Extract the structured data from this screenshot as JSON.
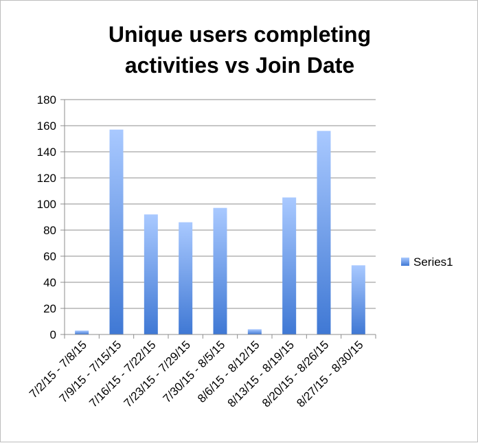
{
  "chart_data": {
    "type": "bar",
    "title_lines": [
      "Unique users completing",
      "activities vs Join Date"
    ],
    "categories": [
      "7/2/15 - 7/8/15",
      "7/9/15 - 7/15/15",
      "7/16/15 - 7/22/15",
      "7/23/15 - 7/29/15",
      "7/30/15 - 8/5/15",
      "8/6/15 - 8/12/15",
      "8/13/15 - 8/19/15",
      "8/20/15 - 8/26/15",
      "8/27/15 - 8/30/15"
    ],
    "series": [
      {
        "name": "Series1",
        "values": [
          3,
          157,
          92,
          86,
          97,
          4,
          105,
          156,
          53
        ]
      }
    ],
    "ylim": [
      0,
      180
    ],
    "yticks": [
      0,
      20,
      40,
      60,
      80,
      100,
      120,
      140,
      160,
      180
    ],
    "grid": true,
    "legend": "right",
    "colors": {
      "bar_top": "#a9c9ff",
      "bar_bottom": "#3f78d4",
      "grid": "#8c8c8c",
      "axis": "#8c8c8c"
    }
  }
}
